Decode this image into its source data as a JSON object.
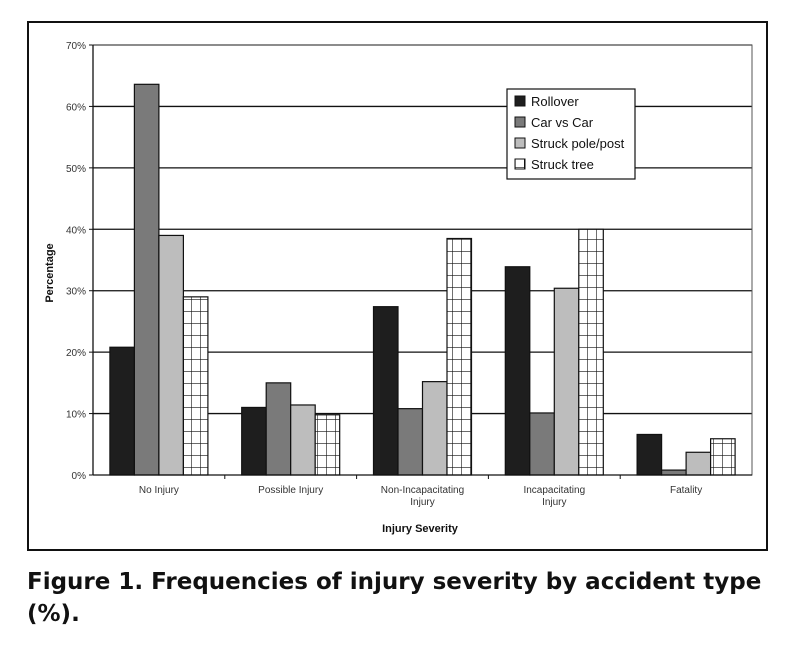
{
  "caption": "Figure 1. Frequencies of injury severity by accident type (%).",
  "chart_data": {
    "type": "bar",
    "title": "",
    "xlabel": "Injury Severity",
    "ylabel": "Percentage",
    "ylim": [
      0,
      70
    ],
    "ytick_values": [
      0,
      10,
      20,
      30,
      40,
      50,
      60,
      70
    ],
    "ytick_labels": [
      "0%",
      "10%",
      "20%",
      "30%",
      "40%",
      "50%",
      "60%",
      "70%"
    ],
    "categories": [
      "No Injury",
      "Possible Injury",
      "Non-Incapacitating Injury",
      "Incapacitating Injury",
      "Fatality"
    ],
    "grid": true,
    "legend_position": "top-right",
    "series": [
      {
        "name": "Rollover",
        "color": "#1e1e1e",
        "pattern": "solid",
        "values": [
          20.8,
          11.0,
          27.4,
          33.9,
          6.6
        ]
      },
      {
        "name": "Car vs Car",
        "color": "#7a7a7a",
        "pattern": "solid",
        "values": [
          63.6,
          15.0,
          10.8,
          10.1,
          0.8
        ]
      },
      {
        "name": "Struck pole/post",
        "color": "#bdbdbd",
        "pattern": "solid",
        "values": [
          39.0,
          11.4,
          15.2,
          30.4,
          3.7
        ]
      },
      {
        "name": "Struck tree",
        "color": "#ffffff",
        "pattern": "grid",
        "values": [
          29.0,
          9.8,
          38.5,
          40.0,
          5.9
        ]
      }
    ]
  }
}
